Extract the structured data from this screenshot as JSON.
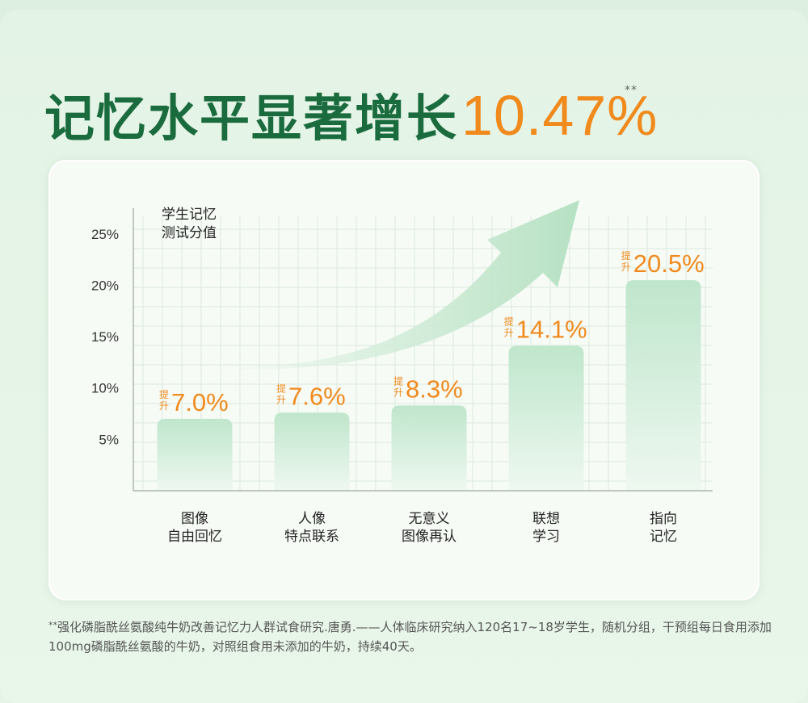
{
  "headline": {
    "text": "记忆水平显著增长",
    "value": "10.47%",
    "mark": "**"
  },
  "chart_data": {
    "type": "bar",
    "ylabel_lines": [
      "学生记忆",
      "测试分值"
    ],
    "yticks": [
      "5%",
      "10%",
      "15%",
      "20%",
      "25%"
    ],
    "ytick_values": [
      5,
      10,
      15,
      20,
      25
    ],
    "ylim": [
      0,
      27.5
    ],
    "categories": [
      [
        "图像",
        "自由回忆"
      ],
      [
        "人像",
        "特点联系"
      ],
      [
        "无意义",
        "图像再认"
      ],
      [
        "联想",
        "学习"
      ],
      [
        "指向",
        "记忆"
      ]
    ],
    "values": [
      7.0,
      7.6,
      8.3,
      14.1,
      20.5
    ],
    "value_labels": [
      "7.0%",
      "7.6%",
      "8.3%",
      "14.1%",
      "20.5%"
    ],
    "badge_text": [
      "提",
      "升"
    ],
    "grid": true,
    "trend_arrow": true,
    "colors": {
      "bar_top": "#bfe6cc",
      "bar_bottom": "#eef8f0",
      "value": "#f08a1d",
      "grid": "#dbe9dd",
      "axis": "#9aa89e",
      "arrow": "#bfe5cb"
    }
  },
  "footnote": {
    "mark": "**",
    "text": "强化磷脂酰丝氨酸纯牛奶改善记忆力人群试食研究.唐勇.——人体临床研究纳入120名17~18岁学生，随机分组，干预组每日食用添加100mg磷脂酰丝氨酸的牛奶，对照组食用未添加的牛奶，持续40天。"
  }
}
